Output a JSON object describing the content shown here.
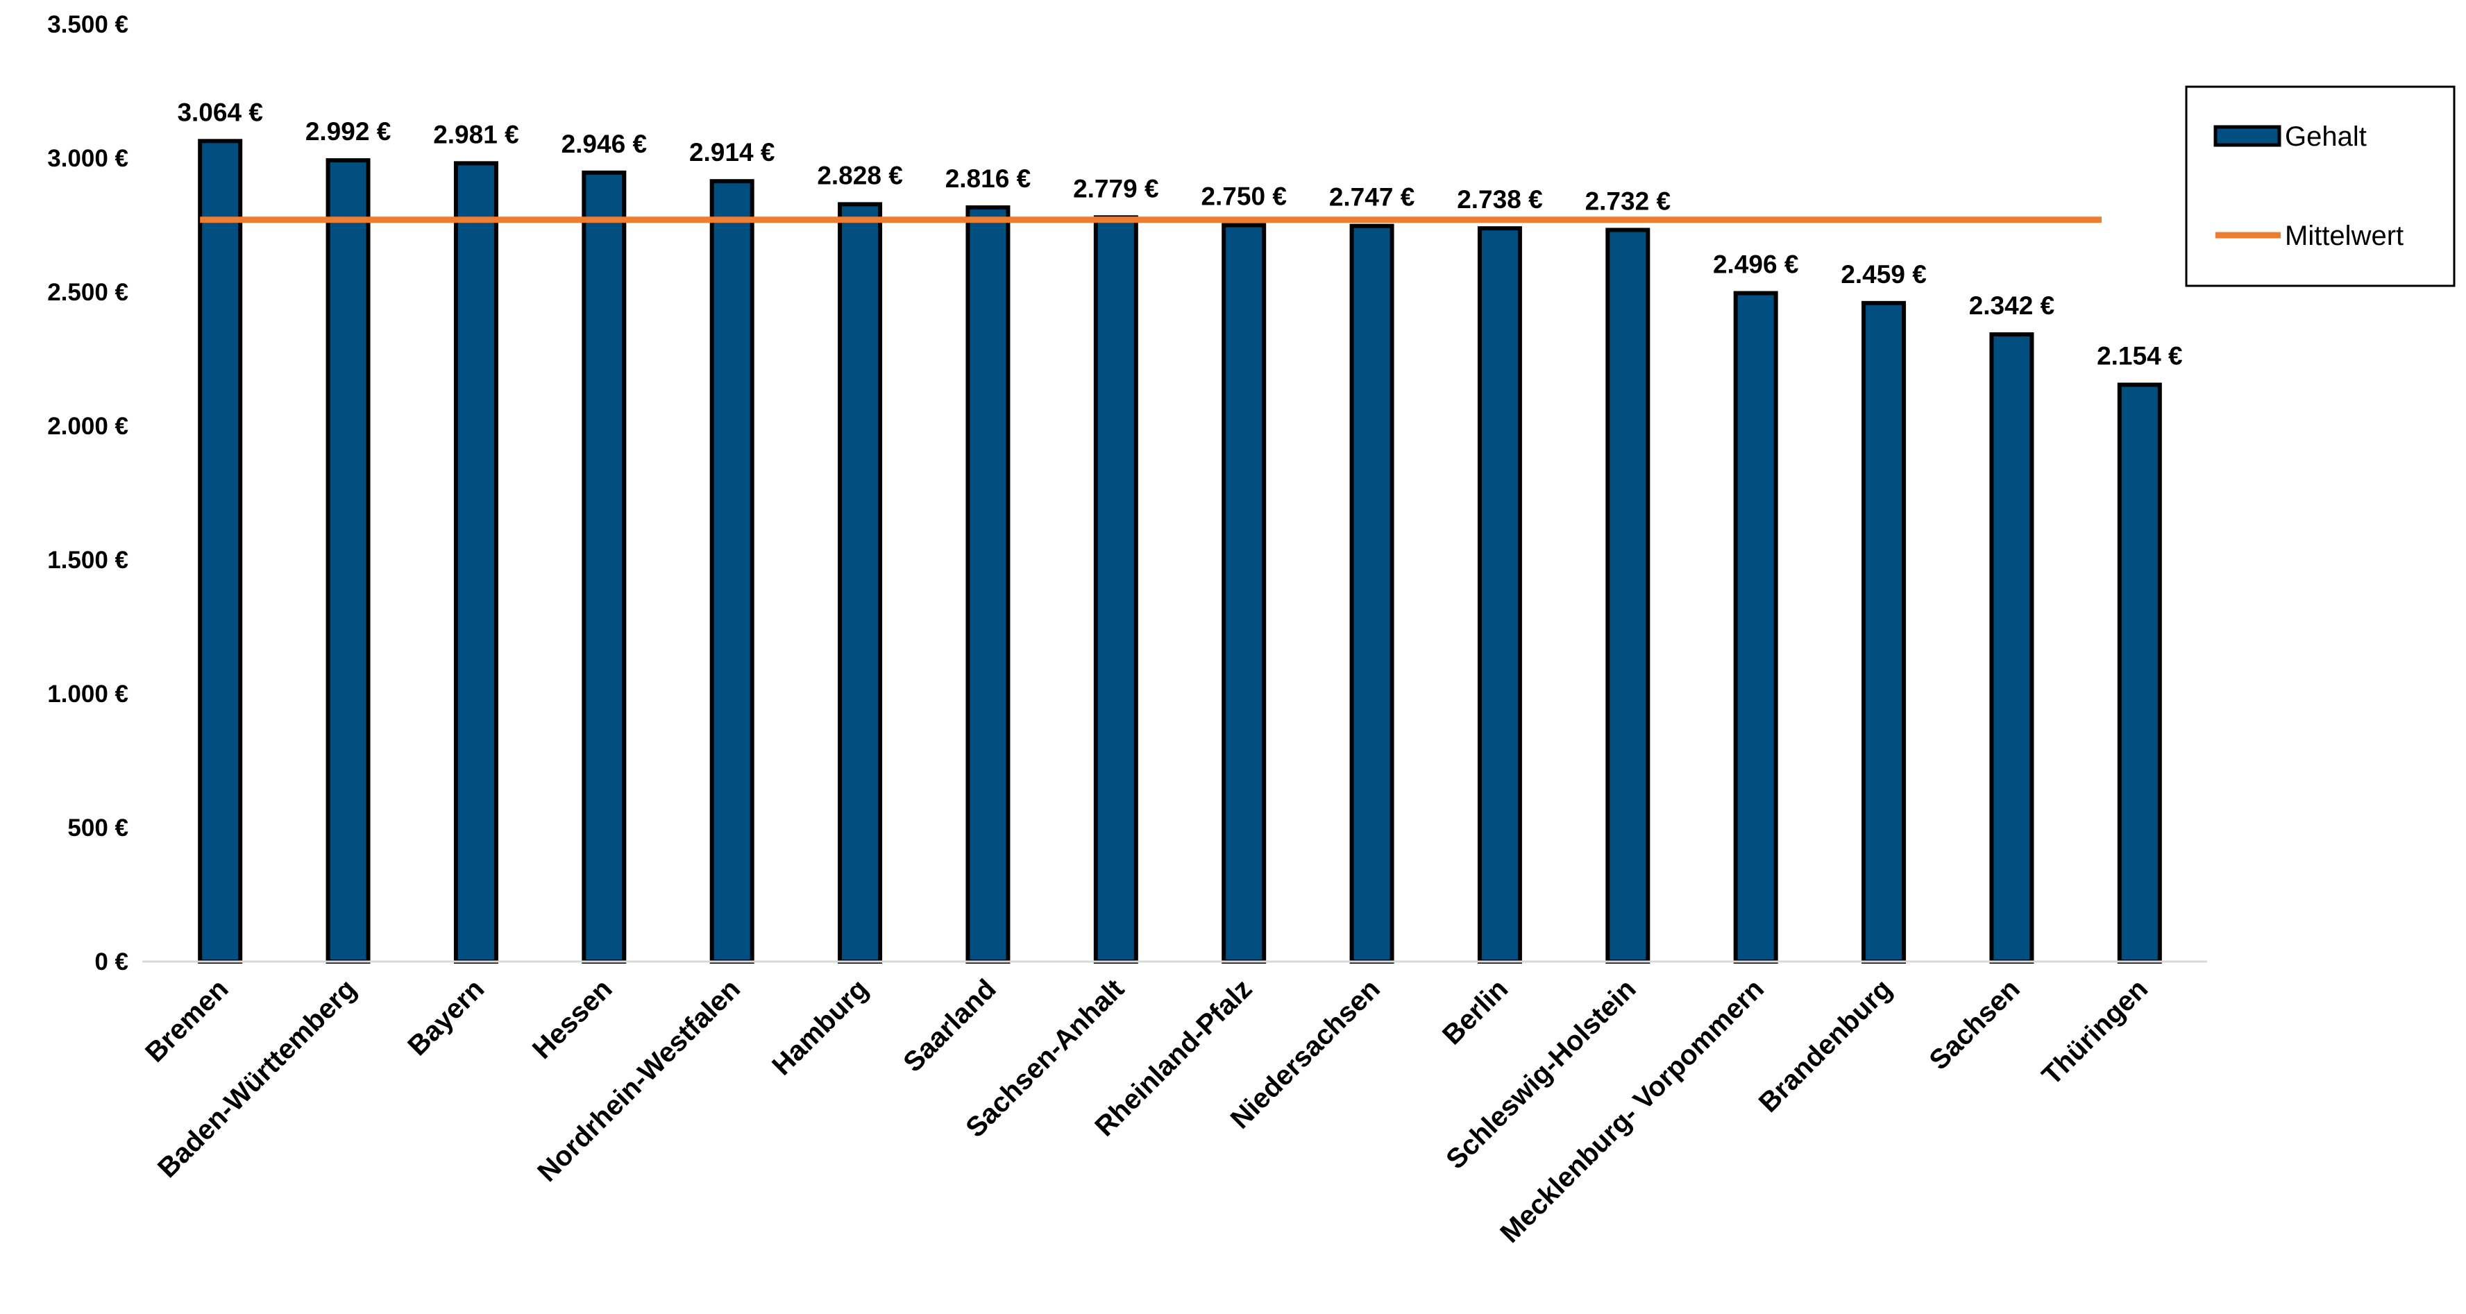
{
  "chart_data": {
    "type": "bar",
    "categories": [
      "Bremen",
      "Baden-Württemberg",
      "Bayern",
      "Hessen",
      "Nordrhein-Westfalen",
      "Hamburg",
      "Saarland",
      "Sachsen-Anhalt",
      "Rheinland-Pfalz",
      "Niedersachsen",
      "Berlin",
      "Schleswig-Holstein",
      "Mecklenburg- Vorpommern",
      "Brandenburg",
      "Sachsen",
      "Thüringen"
    ],
    "series": [
      {
        "name": "Gehalt",
        "values": [
          3064,
          2992,
          2981,
          2946,
          2914,
          2828,
          2816,
          2779,
          2750,
          2747,
          2738,
          2732,
          2496,
          2459,
          2342,
          2154
        ],
        "data_labels": [
          "3.064 €",
          "2.992 €",
          "2.981 €",
          "2.946 €",
          "2.914 €",
          "2.828 €",
          "2.816 €",
          "2.779 €",
          "2.750 €",
          "2.747 €",
          "2.738 €",
          "2.732 €",
          "2.496 €",
          "2.459 €",
          "2.342 €",
          "2.154 €"
        ],
        "color": "#004f80"
      },
      {
        "name": "Mittelwert",
        "type": "line",
        "value": 2770,
        "color": "#ed7d31"
      }
    ],
    "ylim": [
      0,
      3500
    ],
    "yticks": [
      0,
      500,
      1000,
      1500,
      2000,
      2500,
      3000,
      3500
    ],
    "ytick_labels": [
      "0 €",
      "500 €",
      "1.000 €",
      "1.500 €",
      "2.000 €",
      "2.500 €",
      "3.000 €",
      "3.500 €"
    ],
    "title": "",
    "xlabel": "",
    "ylabel": "",
    "grid": false,
    "legend_position": "right"
  }
}
